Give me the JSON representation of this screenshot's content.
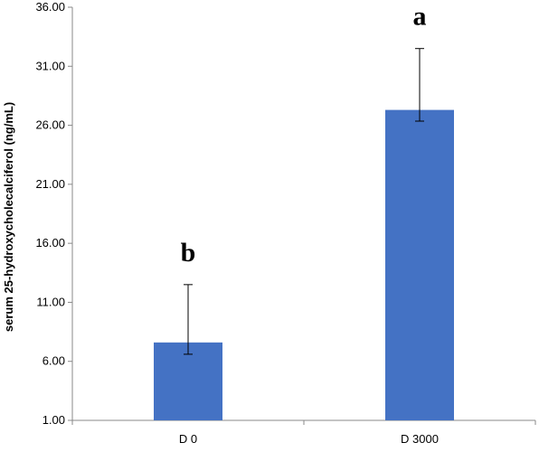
{
  "chart_data": {
    "type": "bar",
    "categories": [
      "D 0",
      "D 3000"
    ],
    "series": [
      {
        "values": [
          7.6,
          27.3
        ],
        "error_lower": [
          1.0,
          0.95
        ],
        "error_upper": [
          4.9,
          5.2
        ],
        "significance": [
          "b",
          "a"
        ],
        "color": "#4472C4"
      }
    ],
    "title": "",
    "xlabel": "",
    "ylabel": "serum 25-hydroxycholecalciferol (ng/mL)",
    "ylim": [
      1.0,
      36.0
    ],
    "yticks": [
      "1.00",
      "6.00",
      "11.00",
      "16.00",
      "21.00",
      "26.00",
      "31.00",
      "36.00"
    ],
    "ytick_values": [
      1,
      6,
      11,
      16,
      21,
      26,
      31,
      36
    ],
    "grid": false,
    "legend": "none"
  }
}
